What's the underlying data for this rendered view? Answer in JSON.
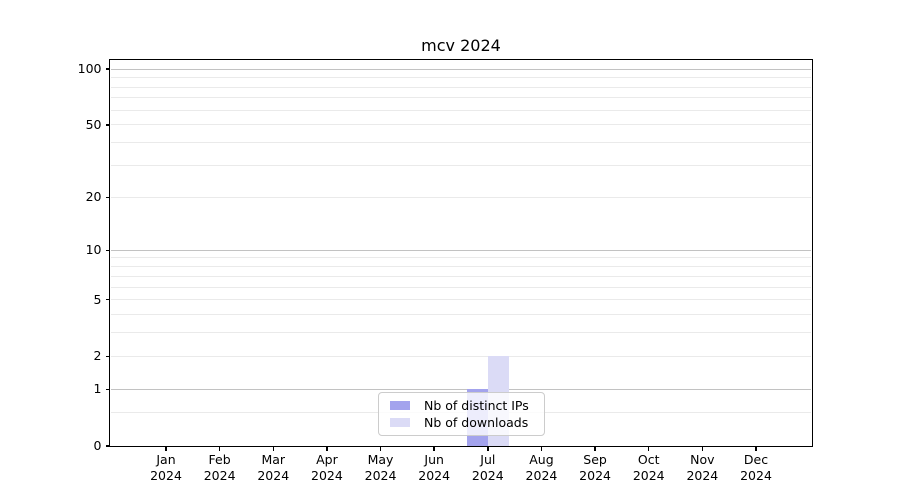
{
  "title": "mcv 2024",
  "chart_data": {
    "type": "bar",
    "title": "mcv 2024",
    "categories": [
      "Jan",
      "Feb",
      "Mar",
      "Apr",
      "May",
      "Jun",
      "Jul",
      "Aug",
      "Sep",
      "Oct",
      "Nov",
      "Dec"
    ],
    "year_label": "2024",
    "series": [
      {
        "name": "Nb of distinct IPs",
        "color": "#a3a3ed",
        "values": [
          0,
          0,
          0,
          0,
          0,
          0,
          1,
          0,
          0,
          0,
          0,
          0
        ]
      },
      {
        "name": "Nb of downloads",
        "color": "#dbdbf6",
        "values": [
          0,
          0,
          0,
          0,
          0,
          0,
          2,
          0,
          0,
          0,
          0,
          0
        ]
      }
    ],
    "y_scale": "log1p",
    "ylim": [
      0,
      112
    ],
    "y_ticks": [
      0,
      1,
      2,
      5,
      10,
      20,
      50,
      100
    ],
    "y_major_gridlines": [
      1,
      10,
      100
    ],
    "y_minor_gridlines": [
      0.5,
      2,
      3,
      4,
      5,
      6,
      7,
      8,
      9,
      20,
      30,
      40,
      50,
      60,
      70,
      80,
      90
    ],
    "grid": true,
    "legend_position": "lower center",
    "colors": {
      "major_grid": "#c2c2c2",
      "minor_grid": "#eaeaea",
      "axis": "#000000",
      "background": "#ffffff"
    }
  }
}
